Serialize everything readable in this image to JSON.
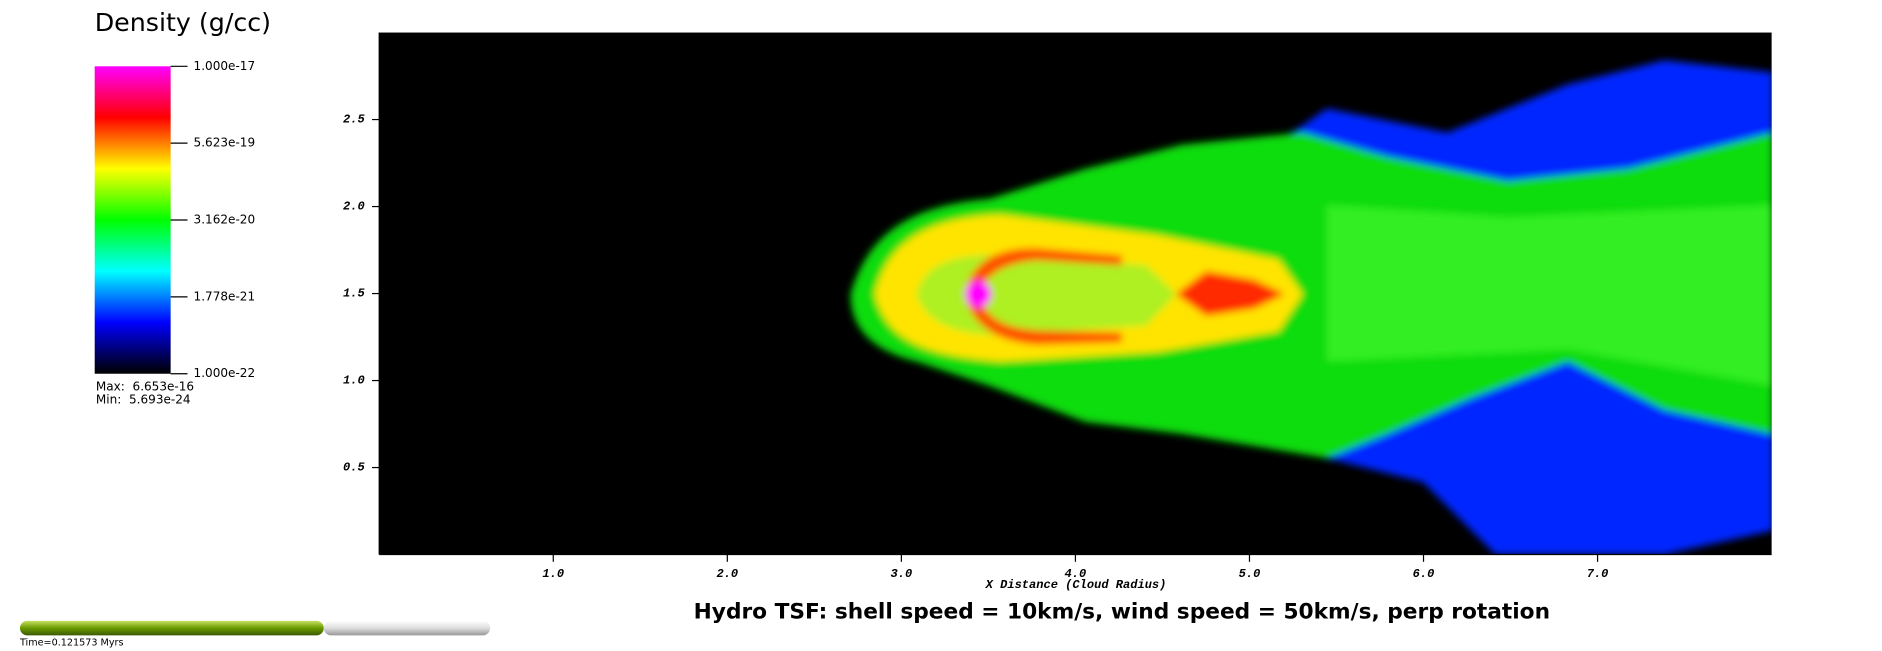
{
  "chart_data": {
    "type": "pseudocolor",
    "legend_title": "Density (g/cc)",
    "colorbar": {
      "scale": "log",
      "lim": [
        1e-22,
        1e-17
      ],
      "ticks": [
        {
          "value": 1e-17,
          "label": "1.000e-17"
        },
        {
          "value": 5.623e-19,
          "label": "5.623e-19"
        },
        {
          "value": 3.162e-20,
          "label": "3.162e-20"
        },
        {
          "value": 1.778e-21,
          "label": "1.778e-21"
        },
        {
          "value": 1e-22,
          "label": "1.000e-22"
        }
      ],
      "colors": [
        "#000000",
        "#0000ff",
        "#00ffff",
        "#00ff00",
        "#ffff00",
        "#ff0000",
        "#ff00ff"
      ]
    },
    "max_text": "Max:  6.653e-16",
    "min_text": "Min:  5.693e-24",
    "xlabel": "X Distance (Cloud Radius)",
    "title": "Hydro TSF: shell speed = 10km/s, wind speed = 50km/s, perp rotation",
    "time_text": "Time=0.121573 Myrs",
    "xlim": [
      0,
      8
    ],
    "ylim": [
      0,
      3
    ],
    "xticks": [
      {
        "value": 1,
        "label": "1.0"
      },
      {
        "value": 2,
        "label": "2.0"
      },
      {
        "value": 3,
        "label": "3.0"
      },
      {
        "value": 4,
        "label": "4.0"
      },
      {
        "value": 5,
        "label": "5.0"
      },
      {
        "value": 6,
        "label": "6.0"
      },
      {
        "value": 7,
        "label": "7.0"
      }
    ],
    "yticks": [
      {
        "value": 0.5,
        "label": "0.5"
      },
      {
        "value": 1,
        "label": "1.0"
      },
      {
        "value": 1.5,
        "label": "1.5"
      },
      {
        "value": 2,
        "label": "2.0"
      },
      {
        "value": 2.5,
        "label": "2.5"
      }
    ]
  }
}
